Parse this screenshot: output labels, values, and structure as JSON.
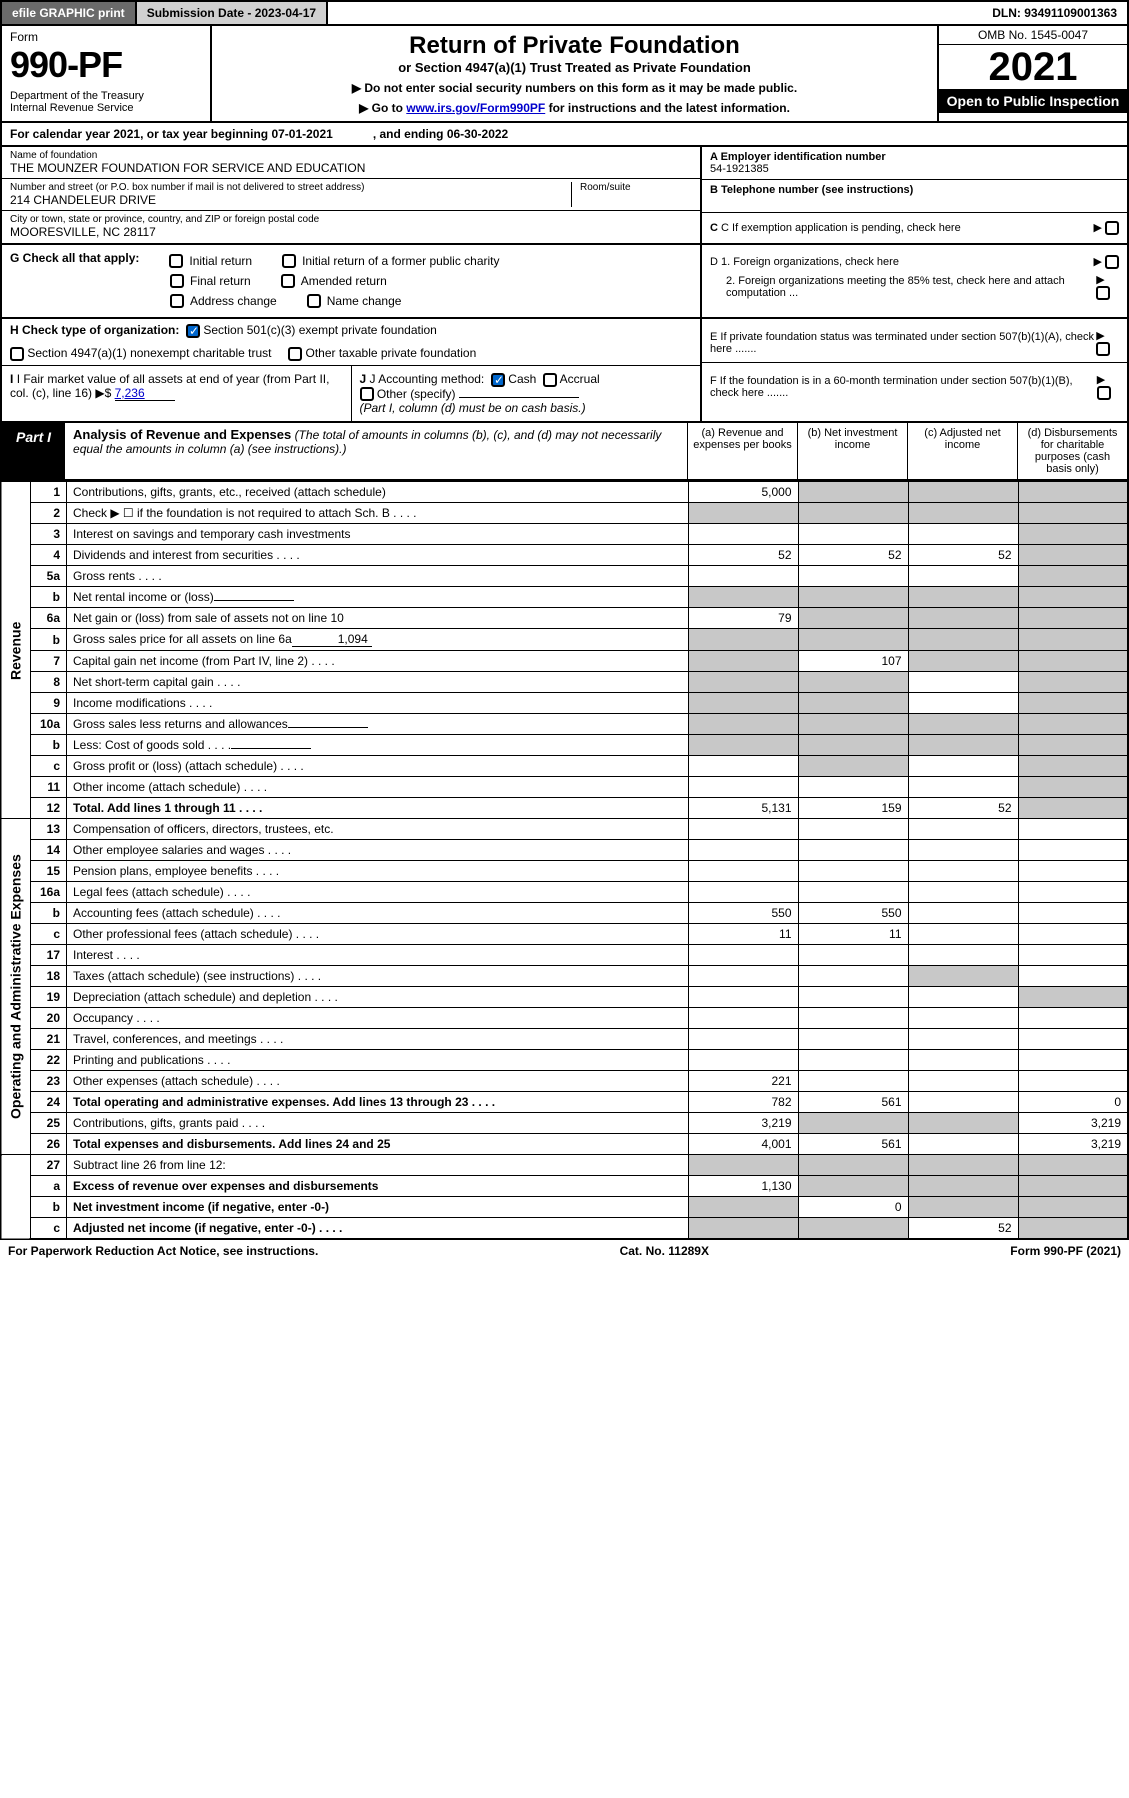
{
  "topbar": {
    "efile": "efile GRAPHIC print",
    "submission": "Submission Date - 2023-04-17",
    "dln": "DLN: 93491109001363"
  },
  "header": {
    "form_label": "Form",
    "form_no": "990-PF",
    "dept": "Department of the Treasury\nInternal Revenue Service",
    "title": "Return of Private Foundation",
    "subtitle": "or Section 4947(a)(1) Trust Treated as Private Foundation",
    "note1": "▶ Do not enter social security numbers on this form as it may be made public.",
    "note2_pre": "▶ Go to ",
    "note2_link": "www.irs.gov/Form990PF",
    "note2_post": " for instructions and the latest information.",
    "omb": "OMB No. 1545-0047",
    "year": "2021",
    "open": "Open to Public Inspection"
  },
  "cal": {
    "text": "For calendar year 2021, or tax year beginning 07-01-2021",
    "ending": ", and ending 06-30-2022"
  },
  "info": {
    "name_label": "Name of foundation",
    "name": "THE MOUNZER FOUNDATION FOR SERVICE AND EDUCATION",
    "addr_label": "Number and street (or P.O. box number if mail is not delivered to street address)",
    "addr": "214 CHANDELEUR DRIVE",
    "room_label": "Room/suite",
    "city_label": "City or town, state or province, country, and ZIP or foreign postal code",
    "city": "MOORESVILLE, NC  28117",
    "ein_label": "A Employer identification number",
    "ein": "54-1921385",
    "tel_label": "B Telephone number (see instructions)",
    "c_label": "C If exemption application is pending, check here"
  },
  "g": {
    "label": "G Check all that apply:",
    "initial": "Initial return",
    "initial_former": "Initial return of a former public charity",
    "final": "Final return",
    "amended": "Amended return",
    "address": "Address change",
    "name": "Name change"
  },
  "d": {
    "d1": "D 1. Foreign organizations, check here",
    "d2": "2. Foreign organizations meeting the 85% test, check here and attach computation ...",
    "e": "E  If private foundation status was terminated under section 507(b)(1)(A), check here .......",
    "f": "F  If the foundation is in a 60-month termination under section 507(b)(1)(B), check here ......."
  },
  "h": {
    "label": "H Check type of organization:",
    "h1": "Section 501(c)(3) exempt private foundation",
    "h2": "Section 4947(a)(1) nonexempt charitable trust",
    "h3": "Other taxable private foundation"
  },
  "i": {
    "label": "I Fair market value of all assets at end of year (from Part II, col. (c), line 16) ▶$",
    "value": "7,236"
  },
  "j": {
    "label": "J Accounting method:",
    "cash": "Cash",
    "accrual": "Accrual",
    "other": "Other (specify)",
    "note": "(Part I, column (d) must be on cash basis.)"
  },
  "part1": {
    "label": "Part I",
    "title": "Analysis of Revenue and Expenses",
    "sub": "(The total of amounts in columns (b), (c), and (d) may not necessarily equal the amounts in column (a) (see instructions).)",
    "colA": "(a)   Revenue and expenses per books",
    "colB": "(b)   Net investment income",
    "colC": "(c)   Adjusted net income",
    "colD": "(d)   Disbursements for charitable purposes (cash basis only)"
  },
  "sections": {
    "revenue": "Revenue",
    "expenses": "Operating and Administrative Expenses"
  },
  "rows": [
    {
      "n": "1",
      "d": "Contributions, gifts, grants, etc., received (attach schedule)",
      "a": "5,000",
      "b": "",
      "c": "",
      "dd": "",
      "shadeB": true,
      "shadeC": true,
      "shadeD": true
    },
    {
      "n": "2",
      "d": "Check ▶ ☐ if the foundation is not required to attach Sch. B",
      "a": "",
      "b": "",
      "c": "",
      "dd": "",
      "shadeA": true,
      "shadeB": true,
      "shadeC": true,
      "shadeD": true,
      "dots": true
    },
    {
      "n": "3",
      "d": "Interest on savings and temporary cash investments",
      "a": "",
      "b": "",
      "c": "",
      "dd": "",
      "shadeD": true
    },
    {
      "n": "4",
      "d": "Dividends and interest from securities",
      "a": "52",
      "b": "52",
      "c": "52",
      "dd": "",
      "shadeD": true,
      "dots": true
    },
    {
      "n": "5a",
      "d": "Gross rents",
      "a": "",
      "b": "",
      "c": "",
      "dd": "",
      "shadeD": true,
      "dots": true
    },
    {
      "n": "b",
      "d": "Net rental income or (loss)",
      "a": "",
      "b": "",
      "c": "",
      "dd": "",
      "shadeA": true,
      "shadeB": true,
      "shadeC": true,
      "shadeD": true,
      "inline": true
    },
    {
      "n": "6a",
      "d": "Net gain or (loss) from sale of assets not on line 10",
      "a": "79",
      "b": "",
      "c": "",
      "dd": "",
      "shadeB": true,
      "shadeC": true,
      "shadeD": true
    },
    {
      "n": "b",
      "d": "Gross sales price for all assets on line 6a",
      "a": "",
      "b": "",
      "c": "",
      "dd": "",
      "shadeA": true,
      "shadeB": true,
      "shadeC": true,
      "shadeD": true,
      "inline": true,
      "inlineVal": "1,094"
    },
    {
      "n": "7",
      "d": "Capital gain net income (from Part IV, line 2)",
      "a": "",
      "b": "107",
      "c": "",
      "dd": "",
      "shadeA": true,
      "shadeC": true,
      "shadeD": true,
      "dots": true
    },
    {
      "n": "8",
      "d": "Net short-term capital gain",
      "a": "",
      "b": "",
      "c": "",
      "dd": "",
      "shadeA": true,
      "shadeB": true,
      "shadeD": true,
      "dots": true
    },
    {
      "n": "9",
      "d": "Income modifications",
      "a": "",
      "b": "",
      "c": "",
      "dd": "",
      "shadeA": true,
      "shadeB": true,
      "shadeD": true,
      "dots": true
    },
    {
      "n": "10a",
      "d": "Gross sales less returns and allowances",
      "a": "",
      "b": "",
      "c": "",
      "dd": "",
      "shadeA": true,
      "shadeB": true,
      "shadeC": true,
      "shadeD": true,
      "inline": true
    },
    {
      "n": "b",
      "d": "Less: Cost of goods sold",
      "a": "",
      "b": "",
      "c": "",
      "dd": "",
      "shadeA": true,
      "shadeB": true,
      "shadeC": true,
      "shadeD": true,
      "inline": true,
      "dots": true
    },
    {
      "n": "c",
      "d": "Gross profit or (loss) (attach schedule)",
      "a": "",
      "b": "",
      "c": "",
      "dd": "",
      "shadeB": true,
      "shadeD": true,
      "dots": true
    },
    {
      "n": "11",
      "d": "Other income (attach schedule)",
      "a": "",
      "b": "",
      "c": "",
      "dd": "",
      "shadeD": true,
      "dots": true
    },
    {
      "n": "12",
      "d": "Total. Add lines 1 through 11",
      "a": "5,131",
      "b": "159",
      "c": "52",
      "dd": "",
      "bold": true,
      "shadeD": true,
      "dots": true
    }
  ],
  "exprows": [
    {
      "n": "13",
      "d": "Compensation of officers, directors, trustees, etc.",
      "a": "",
      "b": "",
      "c": "",
      "dd": ""
    },
    {
      "n": "14",
      "d": "Other employee salaries and wages",
      "a": "",
      "b": "",
      "c": "",
      "dd": "",
      "dots": true
    },
    {
      "n": "15",
      "d": "Pension plans, employee benefits",
      "a": "",
      "b": "",
      "c": "",
      "dd": "",
      "dots": true
    },
    {
      "n": "16a",
      "d": "Legal fees (attach schedule)",
      "a": "",
      "b": "",
      "c": "",
      "dd": "",
      "dots": true
    },
    {
      "n": "b",
      "d": "Accounting fees (attach schedule)",
      "a": "550",
      "b": "550",
      "c": "",
      "dd": "",
      "dots": true
    },
    {
      "n": "c",
      "d": "Other professional fees (attach schedule)",
      "a": "11",
      "b": "11",
      "c": "",
      "dd": "",
      "dots": true
    },
    {
      "n": "17",
      "d": "Interest",
      "a": "",
      "b": "",
      "c": "",
      "dd": "",
      "dots": true
    },
    {
      "n": "18",
      "d": "Taxes (attach schedule) (see instructions)",
      "a": "",
      "b": "",
      "c": "",
      "dd": "",
      "shadeC": true,
      "dots": true
    },
    {
      "n": "19",
      "d": "Depreciation (attach schedule) and depletion",
      "a": "",
      "b": "",
      "c": "",
      "dd": "",
      "shadeD": true,
      "dots": true
    },
    {
      "n": "20",
      "d": "Occupancy",
      "a": "",
      "b": "",
      "c": "",
      "dd": "",
      "dots": true
    },
    {
      "n": "21",
      "d": "Travel, conferences, and meetings",
      "a": "",
      "b": "",
      "c": "",
      "dd": "",
      "dots": true
    },
    {
      "n": "22",
      "d": "Printing and publications",
      "a": "",
      "b": "",
      "c": "",
      "dd": "",
      "dots": true
    },
    {
      "n": "23",
      "d": "Other expenses (attach schedule)",
      "a": "221",
      "b": "",
      "c": "",
      "dd": "",
      "dots": true
    },
    {
      "n": "24",
      "d": "Total operating and administrative expenses. Add lines 13 through 23",
      "a": "782",
      "b": "561",
      "c": "",
      "dd": "0",
      "bold": true,
      "dots": true
    },
    {
      "n": "25",
      "d": "Contributions, gifts, grants paid",
      "a": "3,219",
      "b": "",
      "c": "",
      "dd": "3,219",
      "shadeB": true,
      "shadeC": true,
      "dots": true
    },
    {
      "n": "26",
      "d": "Total expenses and disbursements. Add lines 24 and 25",
      "a": "4,001",
      "b": "561",
      "c": "",
      "dd": "3,219",
      "bold": true
    }
  ],
  "botrows": [
    {
      "n": "27",
      "d": "Subtract line 26 from line 12:",
      "a": "",
      "b": "",
      "c": "",
      "dd": "",
      "shadeA": true,
      "shadeB": true,
      "shadeC": true,
      "shadeD": true
    },
    {
      "n": "a",
      "d": "Excess of revenue over expenses and disbursements",
      "a": "1,130",
      "b": "",
      "c": "",
      "dd": "",
      "bold": true,
      "shadeB": true,
      "shadeC": true,
      "shadeD": true
    },
    {
      "n": "b",
      "d": "Net investment income (if negative, enter -0-)",
      "a": "",
      "b": "0",
      "c": "",
      "dd": "",
      "bold": true,
      "shadeA": true,
      "shadeC": true,
      "shadeD": true
    },
    {
      "n": "c",
      "d": "Adjusted net income (if negative, enter -0-)",
      "a": "",
      "b": "",
      "c": "52",
      "dd": "",
      "bold": true,
      "shadeA": true,
      "shadeB": true,
      "shadeD": true,
      "dots": true
    }
  ],
  "footer": {
    "left": "For Paperwork Reduction Act Notice, see instructions.",
    "mid": "Cat. No. 11289X",
    "right": "Form 990-PF (2021)"
  }
}
